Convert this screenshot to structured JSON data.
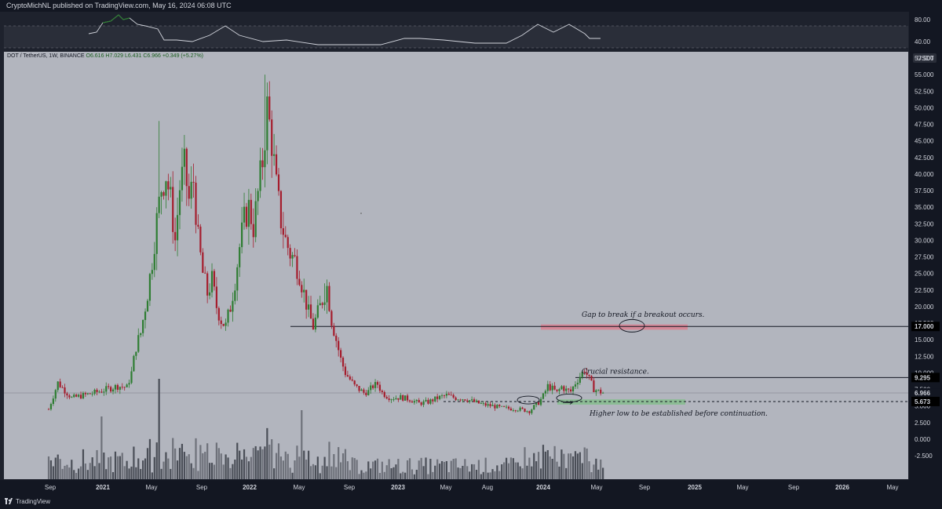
{
  "header": {
    "publisher_line": "CryptoMichNL published on TradingView.com, May 16, 2024 06:08 UTC"
  },
  "footer": {
    "brand": "TradingView"
  },
  "symbol_bar": {
    "pair": "DOT / TetherUS, 1W, BINANCE",
    "open": "O6.616",
    "high": "H7.029",
    "low": "L6.431",
    "close": "C6.966",
    "change": "+0.349 (+5.27%)"
  },
  "currency_badge": "USDT",
  "rsi_axis": {
    "ticks": [
      "80.00",
      "40.00"
    ]
  },
  "price_axis": {
    "ticks": [
      "57.500",
      "55.000",
      "52.500",
      "50.000",
      "47.500",
      "45.000",
      "42.500",
      "40.000",
      "37.500",
      "35.000",
      "32.500",
      "30.000",
      "27.500",
      "25.000",
      "22.500",
      "20.000",
      "17.500",
      "15.000",
      "12.500",
      "10.000",
      "7.500",
      "5.000",
      "2.500",
      "0.000",
      "-2.500"
    ]
  },
  "price_tags": {
    "level_17": "17.000",
    "level_9295": "9.295",
    "last_price": "6.966",
    "countdown": "3d 18h",
    "level_5673": "5.673"
  },
  "time_axis": {
    "labels": [
      "Sep",
      "2021",
      "May",
      "Sep",
      "2022",
      "May",
      "Sep",
      "2023",
      "May",
      "Aug",
      "2024",
      "May",
      "Sep",
      "2025",
      "May",
      "Sep",
      "2026",
      "May"
    ]
  },
  "annotations": {
    "gap": "Gap to break if a breakout occurs.",
    "resistance": "Crucial resistance.",
    "higher_low": "Higher low to be established before continuation."
  },
  "colors": {
    "bull": "#2e7d32",
    "bear": "#a51d2d",
    "zone_red": "#e07a8a",
    "zone_green": "#7fbf87",
    "background_main": "#b2b5be",
    "background_dark": "#131722"
  },
  "chart_data": {
    "type": "candlestick",
    "interval": "1W",
    "y_axis": {
      "range": [
        -3.5,
        60
      ],
      "unit": "USDT"
    },
    "horizontal_levels": [
      17.0,
      9.295,
      5.673
    ],
    "zones": [
      {
        "color": "red",
        "from": 16.5,
        "to": 17.3
      },
      {
        "color": "green",
        "from": 5.2,
        "to": 6.0
      }
    ],
    "close_path": [
      [
        0,
        4.5
      ],
      [
        4,
        8.5
      ],
      [
        10,
        6.2
      ],
      [
        20,
        7.0
      ],
      [
        30,
        8.0
      ],
      [
        34,
        7.8
      ],
      [
        36,
        10
      ],
      [
        38,
        14
      ],
      [
        40,
        16
      ],
      [
        43,
        22
      ],
      [
        45,
        27
      ],
      [
        47,
        33
      ],
      [
        49,
        38
      ],
      [
        51,
        40
      ],
      [
        53,
        36
      ],
      [
        55,
        30
      ],
      [
        57,
        38
      ],
      [
        59,
        41
      ],
      [
        61,
        36
      ],
      [
        63,
        39
      ],
      [
        65,
        30
      ],
      [
        67,
        25
      ],
      [
        69,
        22
      ],
      [
        71,
        24
      ],
      [
        73,
        20
      ],
      [
        75,
        18
      ],
      [
        77,
        17
      ],
      [
        79,
        20
      ],
      [
        81,
        24
      ],
      [
        83,
        29
      ],
      [
        85,
        33
      ],
      [
        87,
        35
      ],
      [
        89,
        32
      ],
      [
        91,
        37
      ],
      [
        93,
        42
      ],
      [
        95,
        50
      ],
      [
        97,
        45
      ],
      [
        99,
        38
      ],
      [
        101,
        33
      ],
      [
        103,
        30
      ],
      [
        105,
        28
      ],
      [
        107,
        27
      ],
      [
        109,
        25
      ],
      [
        111,
        22
      ],
      [
        113,
        19
      ],
      [
        115,
        17
      ],
      [
        117,
        19
      ],
      [
        119,
        21
      ],
      [
        121,
        23
      ],
      [
        123,
        18
      ],
      [
        125,
        15
      ],
      [
        127,
        12
      ],
      [
        129,
        10
      ],
      [
        131,
        9
      ],
      [
        133,
        8
      ],
      [
        135,
        7.5
      ],
      [
        137,
        7
      ],
      [
        139,
        7.2
      ],
      [
        141,
        8
      ],
      [
        143,
        8.3
      ],
      [
        145,
        7
      ],
      [
        147,
        6.5
      ],
      [
        149,
        6.2
      ],
      [
        153,
        6.3
      ],
      [
        157,
        6.0
      ],
      [
        161,
        5.4
      ],
      [
        165,
        5.6
      ],
      [
        169,
        6.2
      ],
      [
        173,
        6.6
      ],
      [
        177,
        6.2
      ],
      [
        181,
        6.1
      ],
      [
        185,
        5.6
      ],
      [
        189,
        5.2
      ],
      [
        193,
        5.0
      ],
      [
        197,
        4.7
      ],
      [
        201,
        4.6
      ],
      [
        205,
        4.5
      ],
      [
        209,
        4.2
      ],
      [
        211,
        4.9
      ],
      [
        213,
        5.5
      ],
      [
        215,
        6.5
      ],
      [
        217,
        8.0
      ],
      [
        219,
        7.6
      ],
      [
        221,
        7.0
      ],
      [
        223,
        7.9
      ],
      [
        225,
        7.4
      ],
      [
        227,
        7.2
      ],
      [
        229,
        8.5
      ],
      [
        231,
        9.5
      ],
      [
        233,
        10.5
      ],
      [
        235,
        9.0
      ],
      [
        237,
        7.6
      ],
      [
        239,
        7.2
      ],
      [
        241,
        7.0
      ]
    ]
  }
}
